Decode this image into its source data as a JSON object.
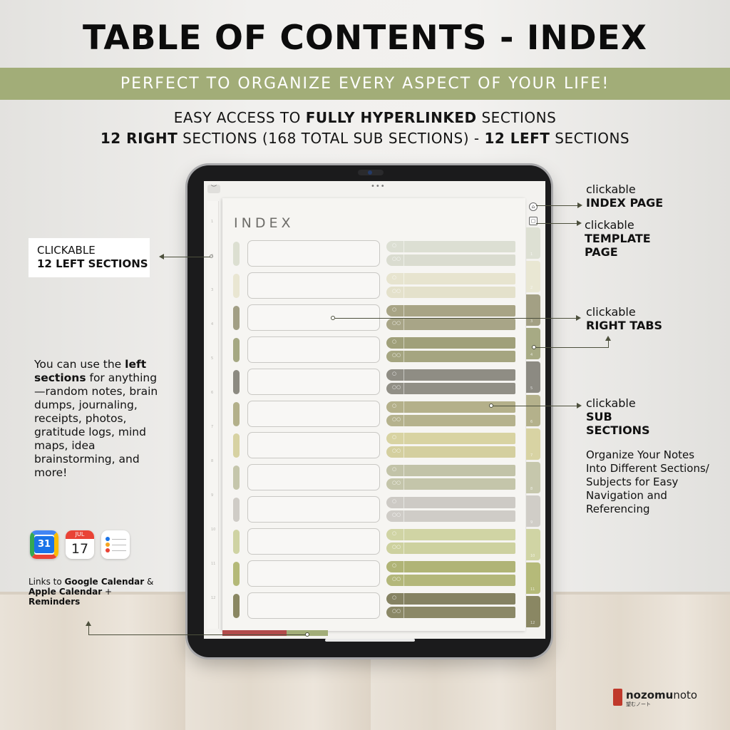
{
  "headline": "TABLE OF CONTENTS - INDEX",
  "banner": "PERFECT TO ORGANIZE EVERY ASPECT OF YOUR LIFE!",
  "subline1": {
    "a": "EASY ACCESS TO ",
    "b": "FULLY HYPERLINKED",
    "c": " SECTIONS"
  },
  "subline2": {
    "a": "12 RIGHT",
    "b": " SECTIONS (168 TOTAL SUB SECTIONS) - ",
    "c": "12 LEFT",
    "d": " SECTIONS"
  },
  "tablet": {
    "page_title": "INDEX",
    "topbar_dots": "•••",
    "topbar_button": "︶",
    "home_icon": "⌂",
    "template_icon": "▢",
    "sub_icon_top": "○",
    "sub_icon_bottom": "○○",
    "row_colors": [
      "#dcdfd1",
      "#e9e6d2",
      "#a29f85",
      "#a5a882",
      "#8c8a81",
      "#b3b08a",
      "#d7d2a2",
      "#c5c6ab",
      "#cfccc6",
      "#cfd3a3",
      "#b4b978",
      "#8a8762"
    ],
    "sub_colors_top": [
      "#dcdfd3",
      "#e7e4cf",
      "#a8a485",
      "#a0a07a",
      "#8f8d84",
      "#b4b08a",
      "#d8d3a2",
      "#c2c3a8",
      "#cdcac5",
      "#d0d4a4",
      "#b0b476",
      "#858262"
    ],
    "sub_colors_bottom": [
      "#dadcd0",
      "#e4e1cb",
      "#a8a587",
      "#a5a580",
      "#918f86",
      "#b5b28d",
      "#d4cf9f",
      "#c4c5aa",
      "#cfccc7",
      "#cdd19f",
      "#b3b77a",
      "#8b8867"
    ],
    "tab_colors": [
      "#dde0d3",
      "#e9e7d3",
      "#a3a084",
      "#a7aa84",
      "#8c8a82",
      "#b4b18b",
      "#d8d3a3",
      "#c6c7ac",
      "#d0cdc7",
      "#d0d4a4",
      "#b5ba79",
      "#8a8763"
    ],
    "rail_numbers": [
      "1",
      "2",
      "3",
      "4",
      "5",
      "6",
      "7",
      "8",
      "9",
      "10",
      "11",
      "12"
    ],
    "tab_numbers": [
      "1",
      "2",
      "3",
      "4",
      "5",
      "6",
      "7",
      "8",
      "9",
      "10",
      "11",
      "12"
    ]
  },
  "callouts": {
    "left_sections": {
      "line1": "CLICKABLE",
      "line2": "12 LEFT SECTIONS"
    },
    "index_page": {
      "line1": "clickable",
      "line2": "INDEX PAGE"
    },
    "template_page": {
      "line1": "clickable",
      "line2": "TEMPLATE",
      "line3": "PAGE"
    },
    "right_tabs": {
      "line1": "clickable",
      "line2": "RIGHT TABS"
    },
    "sub_sections": {
      "line1": "clickable",
      "line2": "SUB",
      "line3": "SECTIONS"
    }
  },
  "left_description": {
    "a": "You can use the ",
    "b": "left sections",
    "c": " for anything—random notes, brain dumps, journaling, receipts, photos, gratitude logs, mind maps, idea brainstorming, and more!"
  },
  "right_description": "Organize Your Notes Into Different Sections/ Subjects for Easy Navigation and Referencing",
  "apps": {
    "google_calendar_day": "31",
    "apple_calendar_month": "JUL",
    "apple_calendar_day": "17",
    "reminder_colors": [
      "#1a73e8",
      "#f5a623",
      "#e94235"
    ]
  },
  "links_text": {
    "a": "Links to ",
    "b": "Google Calendar",
    "c": " & ",
    "d": "Apple Calendar",
    "e": " + ",
    "f": "Reminders"
  },
  "brand": {
    "name_bold": "nozomu",
    "name_light": "noto",
    "sub": "望むノート",
    "logo_text": "nozomu"
  }
}
